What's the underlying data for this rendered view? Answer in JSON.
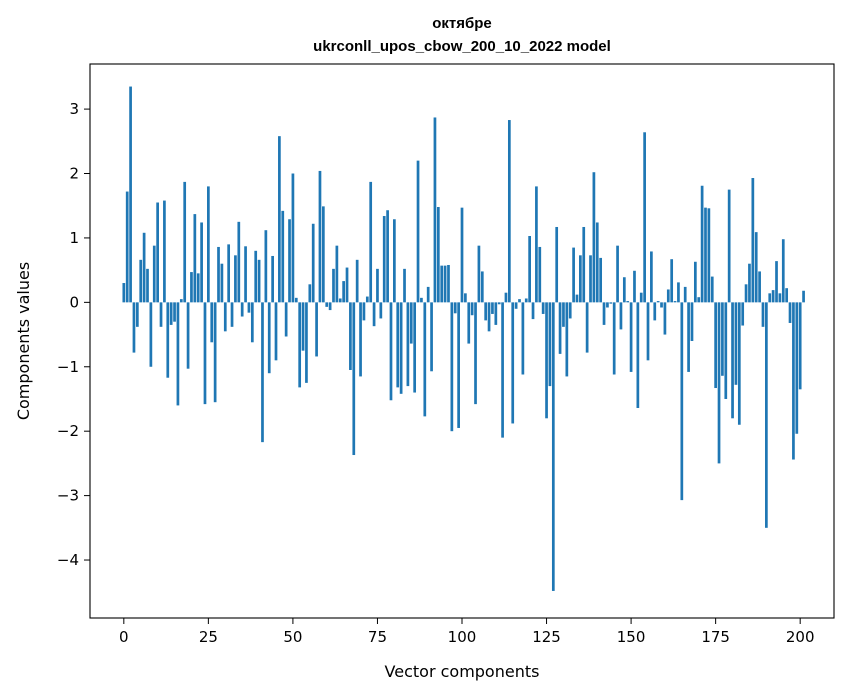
{
  "chart_data": {
    "type": "bar",
    "title": "октябре",
    "subtitle": "ukrconll_upos_cbow_200_10_2022 model",
    "xlabel": "Vector components",
    "ylabel": "Components values",
    "xlim": [
      -10,
      210
    ],
    "ylim": [
      -4.9,
      3.7
    ],
    "xticks": [
      0,
      25,
      50,
      75,
      100,
      125,
      150,
      175,
      200
    ],
    "yticks": [
      -4,
      -3,
      -2,
      -1,
      0,
      1,
      2,
      3
    ],
    "xtick_labels": [
      "0",
      "25",
      "50",
      "75",
      "100",
      "125",
      "150",
      "175",
      "200"
    ],
    "ytick_labels": [
      "−4",
      "−3",
      "−2",
      "−1",
      "0",
      "1",
      "2",
      "3"
    ],
    "grid": false,
    "bar_color": "#1f77b4",
    "values": [
      0.3,
      1.72,
      3.35,
      -0.78,
      -0.38,
      0.66,
      1.08,
      0.52,
      -1.0,
      0.88,
      1.55,
      -0.38,
      1.58,
      -1.17,
      -0.35,
      -0.3,
      -1.6,
      0.05,
      1.87,
      -1.03,
      0.47,
      1.37,
      0.45,
      1.24,
      -1.58,
      1.8,
      -0.62,
      -1.55,
      0.86,
      0.6,
      -0.45,
      0.9,
      -0.38,
      0.73,
      1.25,
      -0.22,
      0.87,
      -0.16,
      -0.62,
      0.8,
      0.66,
      -2.17,
      1.12,
      -1.1,
      0.72,
      -0.9,
      2.58,
      1.42,
      -0.53,
      1.29,
      2.0,
      0.07,
      -1.32,
      -0.75,
      -1.25,
      0.28,
      1.22,
      -0.84,
      2.04,
      1.49,
      -0.07,
      -0.12,
      0.52,
      0.88,
      0.06,
      0.33,
      0.54,
      -1.05,
      -2.37,
      0.66,
      -1.15,
      -0.28,
      0.09,
      1.87,
      -0.37,
      0.52,
      -0.25,
      1.34,
      1.43,
      -1.52,
      1.29,
      -1.32,
      -1.42,
      0.52,
      -1.3,
      -0.64,
      -1.4,
      2.2,
      0.07,
      -1.77,
      0.24,
      -1.07,
      2.87,
      1.48,
      0.57,
      0.57,
      0.58,
      -2.0,
      -0.17,
      -1.95,
      1.47,
      0.14,
      -0.64,
      -0.2,
      -1.58,
      0.88,
      0.48,
      -0.28,
      -0.45,
      -0.18,
      -0.35,
      -0.03,
      -2.1,
      0.15,
      2.83,
      -1.88,
      -0.1,
      0.05,
      -1.12,
      0.06,
      1.03,
      -0.26,
      1.8,
      0.86,
      -0.18,
      -1.8,
      -1.3,
      -4.48,
      1.17,
      -0.8,
      -0.38,
      -1.15,
      -0.25,
      0.85,
      0.12,
      0.73,
      1.17,
      -0.78,
      0.73,
      2.02,
      1.24,
      0.69,
      -0.35,
      -0.08,
      -0.02,
      -1.12,
      0.88,
      -0.42,
      0.39,
      0.02,
      -1.08,
      0.49,
      -1.64,
      0.15,
      2.64,
      -0.9,
      0.79,
      -0.28,
      0.02,
      -0.08,
      -0.5,
      0.2,
      0.67,
      0.02,
      0.31,
      -3.07,
      0.24,
      -1.08,
      -0.6,
      0.63,
      0.08,
      1.81,
      1.47,
      1.46,
      0.4,
      -1.33,
      -2.5,
      -1.14,
      -1.5,
      1.75,
      -1.8,
      -1.28,
      -1.9,
      -0.36,
      0.28,
      0.6,
      1.93,
      1.09,
      0.48,
      -0.38,
      -3.5,
      0.14,
      0.19,
      0.64,
      0.14,
      0.98,
      0.22,
      -0.32,
      -2.44,
      -2.04,
      -1.35,
      0.18
    ]
  }
}
